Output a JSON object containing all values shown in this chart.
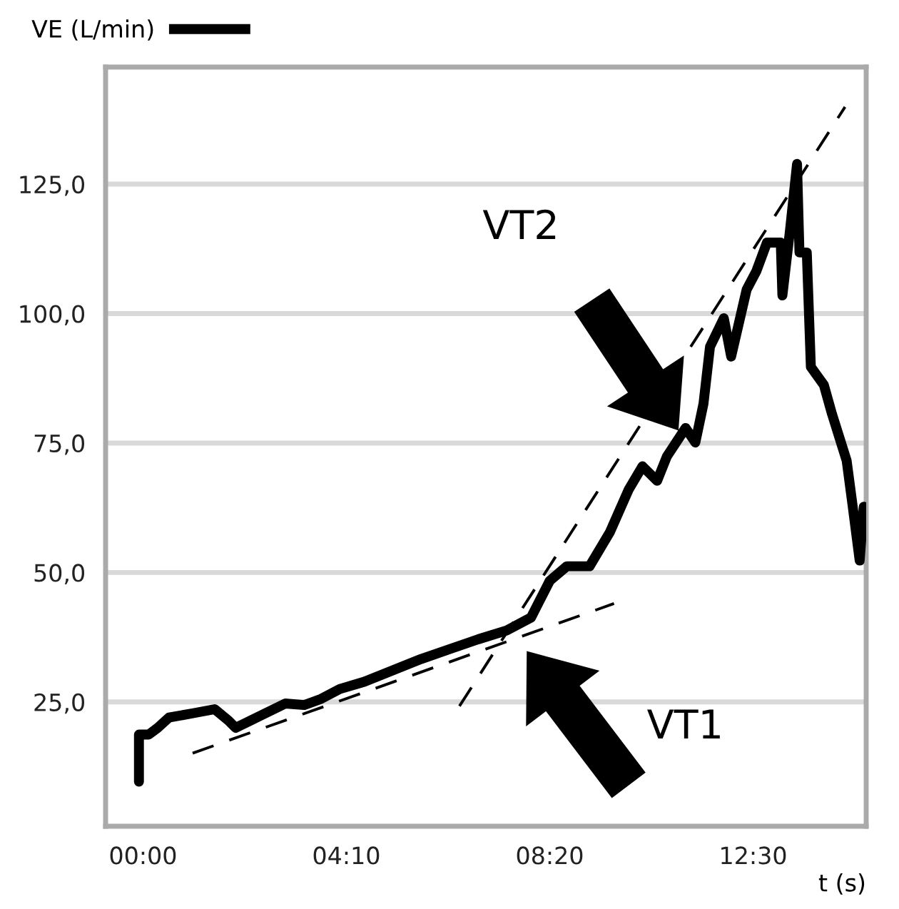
{
  "chart_data": {
    "type": "line",
    "xlabel": "t (s)",
    "xlim": [
      -46,
      889
    ],
    "xticks": [
      {
        "value": 0,
        "label": "00:00"
      },
      {
        "value": 250,
        "label": "04:10"
      },
      {
        "value": 500,
        "label": "08:20"
      },
      {
        "value": 750,
        "label": "12:30"
      }
    ],
    "ylim": [
      1,
      147.6
    ],
    "yticks": [
      {
        "value": 25,
        "label": "25,0"
      },
      {
        "value": 50,
        "label": "50,0"
      },
      {
        "value": 75,
        "label": "75,0"
      },
      {
        "value": 100,
        "label": "100,0"
      },
      {
        "value": 125,
        "label": "125,0"
      }
    ],
    "grid": "y",
    "legend": "top left",
    "marker": "none",
    "series": [
      {
        "name": "VE (L/min)",
        "color": "#000000",
        "line_style": "solid",
        "x": [
          -5,
          -5,
          7,
          18,
          32,
          61,
          88,
          105,
          114,
          140,
          175,
          198,
          219,
          242,
          272,
          307,
          342,
          377,
          412,
          447,
          477,
          500,
          521,
          549,
          574,
          597,
          614,
          632,
          644,
          667,
          679,
          689,
          697,
          714,
          723,
          742,
          754,
          767,
          784,
          786,
          795,
          804,
          807,
          816,
          821,
          837,
          847,
          865,
          872,
          881,
          886
        ],
        "values": [
          9.6,
          18.7,
          18.7,
          20.0,
          22.0,
          22.8,
          23.6,
          21.4,
          20.0,
          22.0,
          24.7,
          24.4,
          25.6,
          27.5,
          28.9,
          31.1,
          33.3,
          35.2,
          37.1,
          38.8,
          41.3,
          48.4,
          51.2,
          51.2,
          57.8,
          66.0,
          70.5,
          67.7,
          72.4,
          77.9,
          75.1,
          82.6,
          93.6,
          99.1,
          91.7,
          104.6,
          108.2,
          113.7,
          113.7,
          103.5,
          115.6,
          128.9,
          111.8,
          111.8,
          89.7,
          86.2,
          80.6,
          71.6,
          63.3,
          52.3,
          62.7
        ]
      },
      {
        "color": "#000000",
        "line_style": "dashed",
        "x": [
          61,
          579
        ],
        "values": [
          15.1,
          44.0
        ]
      },
      {
        "color": "#000000",
        "line_style": "dashed",
        "x": [
          389,
          863
        ],
        "values": [
          24.2,
          139.9
        ]
      }
    ],
    "annotations": [
      "VT1",
      "VT2"
    ]
  }
}
